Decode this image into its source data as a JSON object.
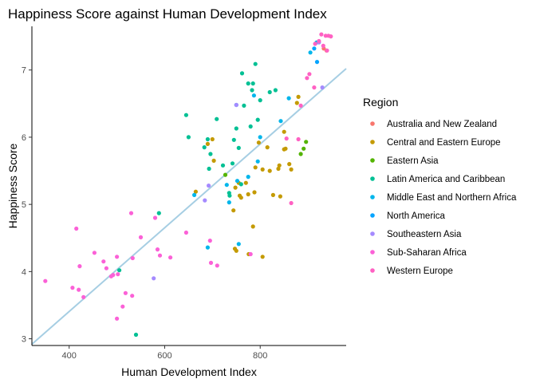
{
  "chart_data": {
    "type": "scatter",
    "title": "Happiness Score against Human Development Index",
    "xlabel": "Human Development Index",
    "ylabel": "Happiness Score",
    "xlim": [
      322,
      980
    ],
    "ylim": [
      2.9,
      7.65
    ],
    "xticks": [
      400,
      600,
      800
    ],
    "yticks": [
      3,
      4,
      5,
      6,
      7
    ],
    "grid": false,
    "legend": {
      "title": "Region",
      "position": "right"
    },
    "trendline": {
      "from": [
        322,
        2.92
      ],
      "to": [
        980,
        7.02
      ],
      "color": "#a6cee3"
    },
    "series": [
      {
        "name": "Australia and New Zealand",
        "color": "#F8766D",
        "points": [
          [
            933,
            7.32
          ],
          [
            939,
            7.29
          ]
        ]
      },
      {
        "name": "Central and Eastern Europe",
        "color": "#C49A00",
        "points": [
          [
            665,
            5.19
          ],
          [
            690,
            5.9
          ],
          [
            700,
            5.97
          ],
          [
            703,
            5.65
          ],
          [
            744,
            4.91
          ],
          [
            748,
            5.25
          ],
          [
            747,
            4.34
          ],
          [
            750,
            4.31
          ],
          [
            755,
            5.32
          ],
          [
            757,
            5.13
          ],
          [
            760,
            5.1
          ],
          [
            770,
            5.32
          ],
          [
            775,
            5.15
          ],
          [
            776,
            4.26
          ],
          [
            785,
            4.67
          ],
          [
            788,
            5.18
          ],
          [
            790,
            5.55
          ],
          [
            797,
            5.92
          ],
          [
            805,
            4.22
          ],
          [
            805,
            5.52
          ],
          [
            815,
            5.85
          ],
          [
            820,
            5.5
          ],
          [
            827,
            5.14
          ],
          [
            838,
            5.53
          ],
          [
            840,
            5.58
          ],
          [
            842,
            5.12
          ],
          [
            850,
            6.08
          ],
          [
            850,
            5.82
          ],
          [
            853,
            5.83
          ],
          [
            861,
            5.6
          ],
          [
            865,
            5.52
          ],
          [
            877,
            6.51
          ],
          [
            880,
            6.6
          ]
        ]
      },
      {
        "name": "Eastern Asia",
        "color": "#53B400",
        "points": [
          [
            727,
            5.44
          ],
          [
            885,
            5.75
          ],
          [
            891,
            5.83
          ],
          [
            896,
            5.93
          ]
        ]
      },
      {
        "name": "Latin America and Caribbean",
        "color": "#00C094",
        "points": [
          [
            505,
            4.02
          ],
          [
            588,
            4.87
          ],
          [
            645,
            6.33
          ],
          [
            650,
            6.0
          ],
          [
            683,
            5.85
          ],
          [
            690,
            5.97
          ],
          [
            693,
            5.53
          ],
          [
            696,
            5.75
          ],
          [
            709,
            6.27
          ],
          [
            722,
            5.58
          ],
          [
            735,
            5.17
          ],
          [
            736,
            5.13
          ],
          [
            742,
            5.61
          ],
          [
            745,
            5.96
          ],
          [
            750,
            6.13
          ],
          [
            755,
            5.84
          ],
          [
            760,
            5.3
          ],
          [
            762,
            6.95
          ],
          [
            766,
            6.47
          ],
          [
            775,
            6.8
          ],
          [
            780,
            6.16
          ],
          [
            783,
            6.7
          ],
          [
            785,
            6.8
          ],
          [
            790,
            7.09
          ],
          [
            795,
            6.26
          ],
          [
            800,
            6.55
          ],
          [
            820,
            6.67
          ],
          [
            832,
            6.7
          ],
          [
            540,
            3.06
          ]
        ]
      },
      {
        "name": "Middle East and Northern Africa",
        "color": "#00B6EB",
        "points": [
          [
            662,
            5.14
          ],
          [
            690,
            4.36
          ],
          [
            730,
            5.29
          ],
          [
            735,
            5.03
          ],
          [
            750,
            6.48
          ],
          [
            752,
            5.35
          ],
          [
            755,
            4.41
          ],
          [
            775,
            5.41
          ],
          [
            787,
            6.62
          ],
          [
            795,
            5.64
          ],
          [
            800,
            6.0
          ],
          [
            843,
            6.24
          ],
          [
            860,
            6.58
          ],
          [
            905,
            7.26
          ],
          [
            918,
            7.41
          ]
        ]
      },
      {
        "name": "North America",
        "color": "#06A4FF",
        "points": [
          [
            913,
            7.32
          ],
          [
            919,
            7.12
          ]
        ]
      },
      {
        "name": "Southeastern Asia",
        "color": "#A58AFF",
        "points": [
          [
            577,
            3.9
          ],
          [
            684,
            5.06
          ],
          [
            692,
            5.28
          ],
          [
            750,
            6.48
          ],
          [
            923,
            7.41
          ],
          [
            930,
            6.74
          ]
        ]
      },
      {
        "name": "Sub-Saharan Africa",
        "color": "#FB61D7",
        "points": [
          [
            350,
            3.86
          ],
          [
            407,
            3.76
          ],
          [
            415,
            4.64
          ],
          [
            420,
            3.73
          ],
          [
            422,
            4.08
          ],
          [
            430,
            3.62
          ],
          [
            453,
            4.28
          ],
          [
            472,
            4.15
          ],
          [
            478,
            4.05
          ],
          [
            488,
            3.93
          ],
          [
            492,
            3.95
          ],
          [
            500,
            4.22
          ],
          [
            500,
            3.3
          ],
          [
            502,
            3.96
          ],
          [
            512,
            3.48
          ],
          [
            518,
            3.68
          ],
          [
            530,
            4.87
          ],
          [
            532,
            3.64
          ],
          [
            533,
            4.2
          ],
          [
            550,
            4.51
          ],
          [
            580,
            4.8
          ],
          [
            585,
            4.33
          ],
          [
            590,
            4.24
          ],
          [
            612,
            4.21
          ],
          [
            645,
            4.58
          ],
          [
            695,
            4.46
          ],
          [
            697,
            4.13
          ],
          [
            710,
            4.09
          ],
          [
            780,
            4.26
          ]
        ]
      },
      {
        "name": "Western Europe",
        "color": "#FF61C3",
        "points": [
          [
            855,
            5.98
          ],
          [
            865,
            5.02
          ],
          [
            880,
            5.97
          ],
          [
            885,
            6.47
          ],
          [
            898,
            6.88
          ],
          [
            903,
            6.94
          ],
          [
            913,
            6.74
          ],
          [
            915,
            7.39
          ],
          [
            923,
            7.43
          ],
          [
            928,
            7.53
          ],
          [
            932,
            7.36
          ],
          [
            937,
            7.51
          ],
          [
            940,
            7.29
          ],
          [
            943,
            7.51
          ],
          [
            948,
            7.5
          ]
        ]
      }
    ]
  }
}
